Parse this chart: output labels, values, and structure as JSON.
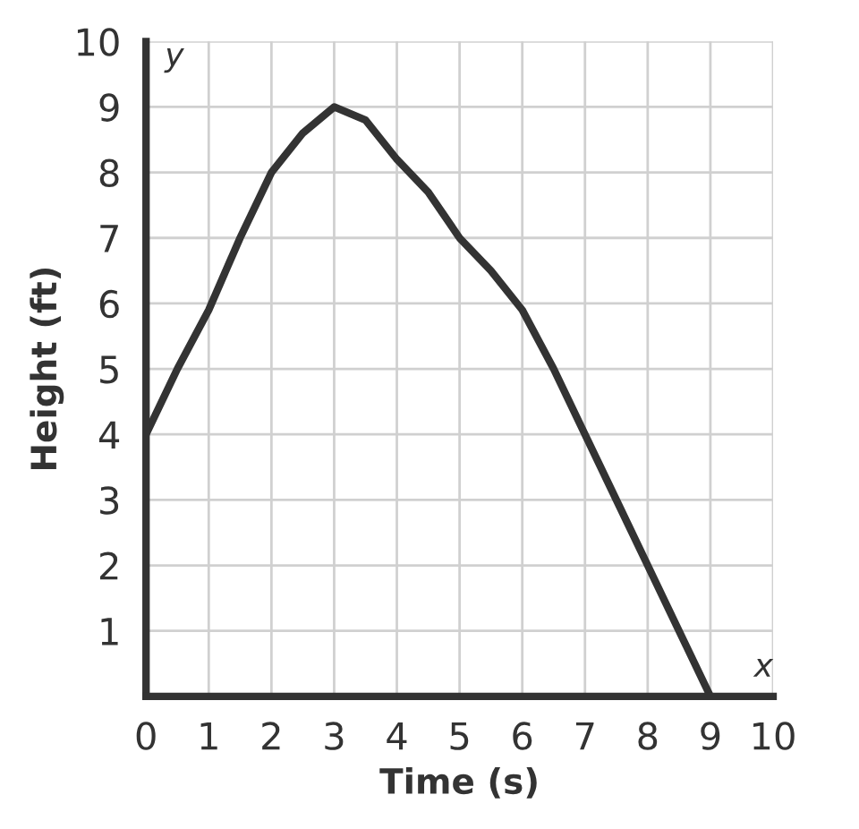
{
  "chart_data": {
    "type": "line",
    "xlabel": "Time (s)",
    "ylabel": "Height (ft)",
    "annotations": [
      "x",
      "y"
    ],
    "x": [
      0,
      0.5,
      1,
      1.5,
      2,
      2.5,
      3,
      3.5,
      4,
      4.5,
      5,
      5.5,
      6,
      6.5,
      7,
      7.5,
      8,
      8.5,
      9
    ],
    "series": [
      {
        "color": "#333333",
        "values": [
          4,
          5,
          5.9,
          7,
          8,
          8.6,
          9,
          8.8,
          8.2,
          7.7,
          7,
          6.5,
          5.9,
          5,
          4,
          3,
          2,
          1,
          0
        ]
      }
    ],
    "xlim": [
      0,
      10
    ],
    "ylim": [
      0,
      10
    ],
    "xticks": [
      0,
      1,
      2,
      3,
      4,
      5,
      6,
      7,
      8,
      9,
      10
    ],
    "yticks": [
      1,
      2,
      3,
      4,
      5,
      6,
      7,
      8,
      9,
      10
    ],
    "grid": true,
    "marker": "none",
    "line_style": "solid"
  }
}
